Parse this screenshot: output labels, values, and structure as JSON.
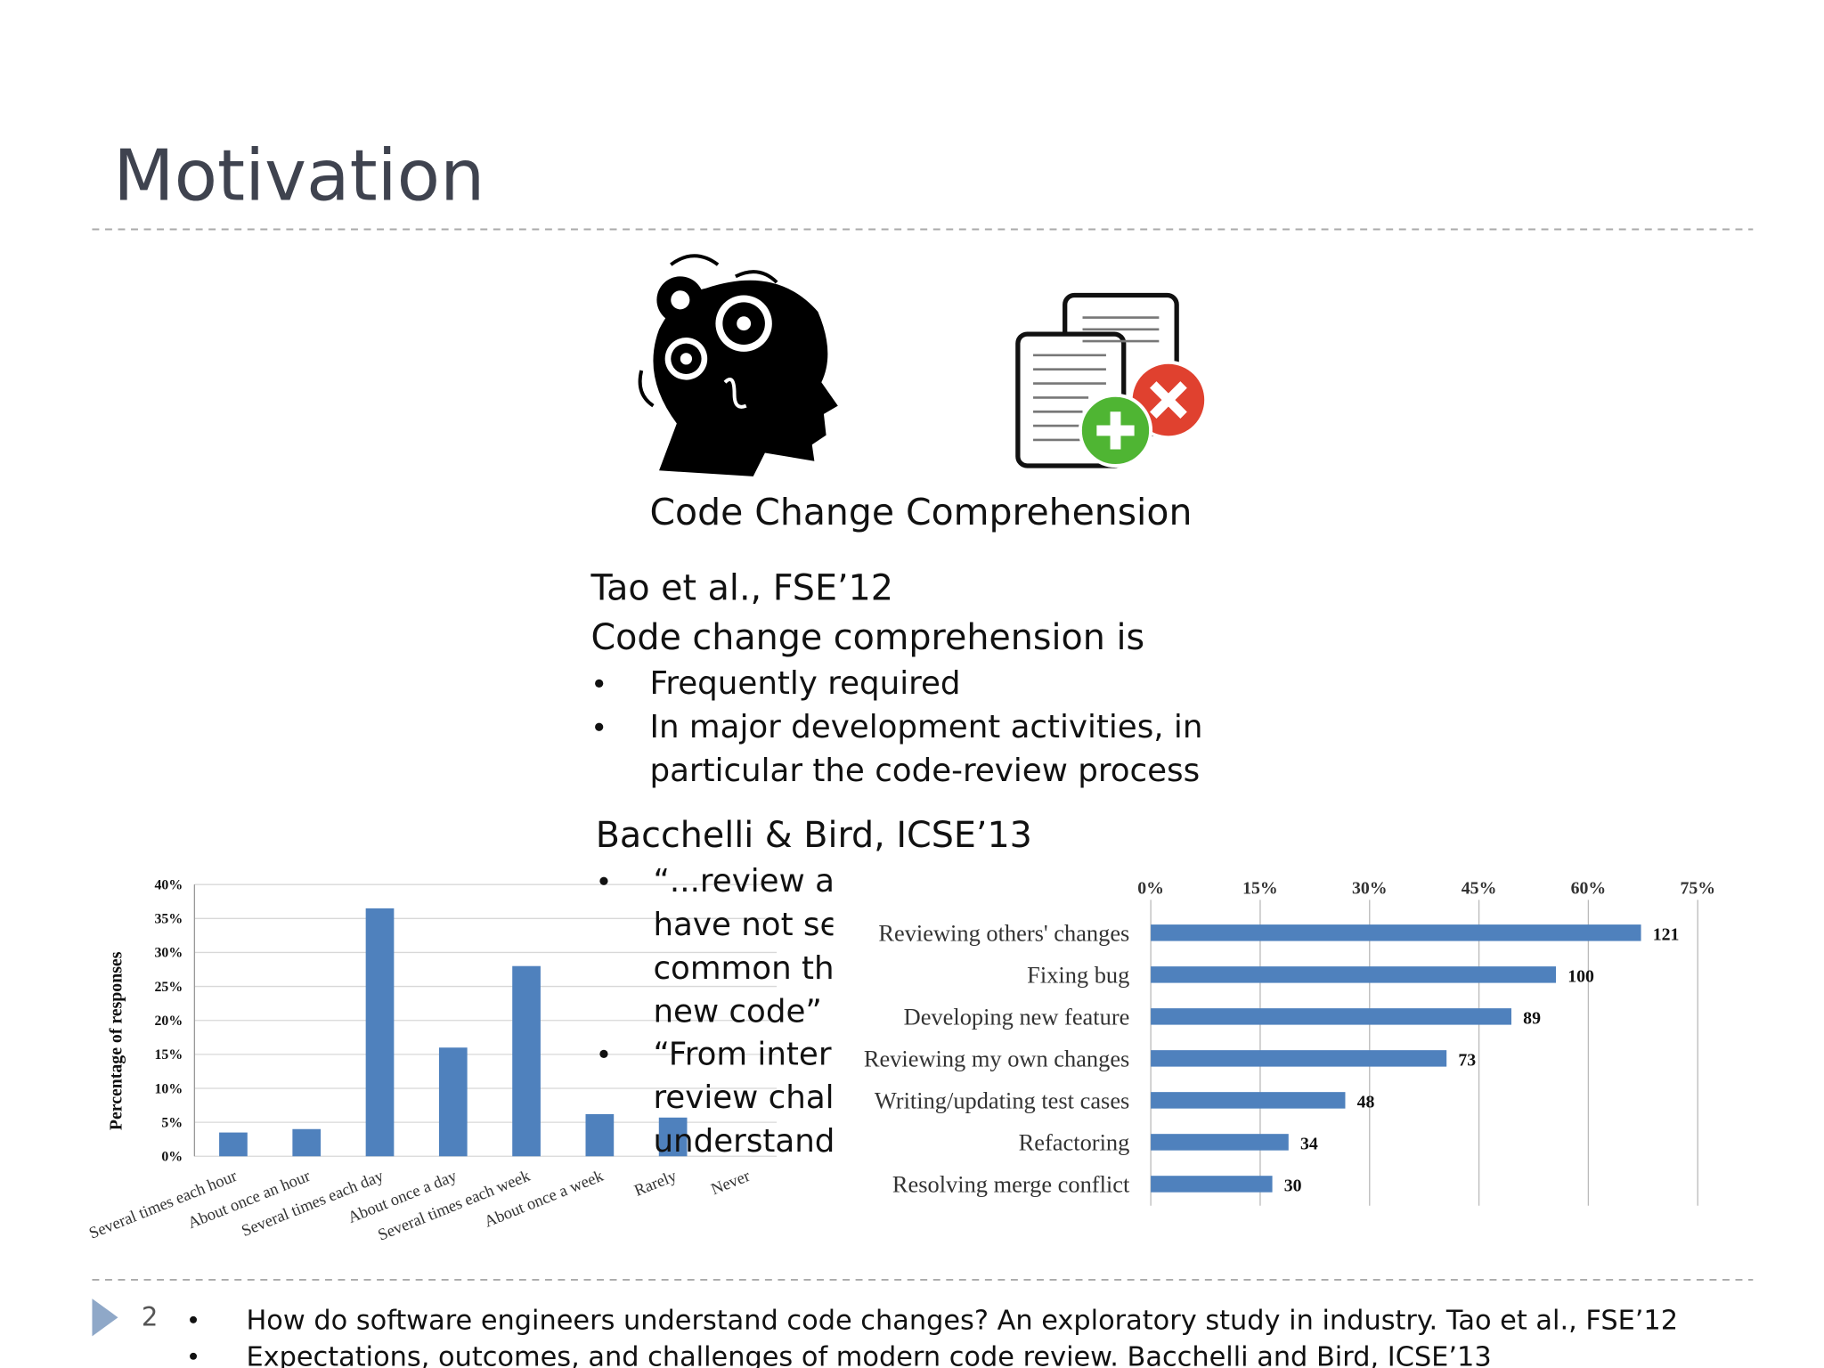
{
  "title": "Motivation",
  "caption": "Code Change Comprehension",
  "sections": [
    {
      "heading": "Tao et al., FSE’12",
      "lead": "Code change comprehension is",
      "bullets": [
        [
          "Frequently required"
        ],
        [
          "In major development activities, in",
          "particular the code-review process"
        ]
      ]
    },
    {
      "heading": "Bacchelli & Bird, ICSE’13",
      "bullets": [
        [
          "“...review a",
          "have not see",
          "common tha",
          "new code”"
        ],
        [
          "“From inter",
          "review chall",
          "understandi"
        ]
      ]
    }
  ],
  "chart_data": [
    {
      "type": "bar",
      "y_label": "Percentage of responses",
      "color": "#4f81bd",
      "categories": [
        "Several times each hour",
        "About once an hour",
        "Several times each day",
        "About once a day",
        "Several times each week",
        "About once a week",
        "Rarely",
        "Never"
      ],
      "values": [
        3.5,
        4,
        36.5,
        16,
        28,
        6.2,
        5.7,
        0
      ],
      "ylim": [
        0,
        40
      ],
      "yticks": [
        {
          "value": 0,
          "label": "0%"
        },
        {
          "value": 5,
          "label": "5%"
        },
        {
          "value": 10,
          "label": "10%"
        },
        {
          "value": 15,
          "label": "15%"
        },
        {
          "value": 20,
          "label": "20%"
        },
        {
          "value": 25,
          "label": "25%"
        },
        {
          "value": 30,
          "label": "30%"
        },
        {
          "value": 35,
          "label": "35%"
        },
        {
          "value": 40,
          "label": "40%"
        }
      ],
      "grid": true
    },
    {
      "type": "hbar",
      "color": "#4f81bd",
      "categories": [
        "Reviewing others' changes",
        "Fixing bug",
        "Developing new feature",
        "Reviewing my own changes",
        "Writing/updating test cases",
        "Refactoring",
        "Resolving merge conflict"
      ],
      "values": [
        121,
        100,
        89,
        73,
        48,
        34,
        30
      ],
      "xlim": [
        0,
        135
      ],
      "xticks": [
        {
          "value": 0,
          "label": "0%"
        },
        {
          "value": 27,
          "label": "15%"
        },
        {
          "value": 54,
          "label": "30%"
        },
        {
          "value": 81,
          "label": "45%"
        },
        {
          "value": 108,
          "label": "60%"
        },
        {
          "value": 135,
          "label": "75%"
        }
      ],
      "grid": true
    }
  ],
  "footer": {
    "page": "2",
    "references": [
      "How do software engineers understand code changes? An exploratory study in industry. Tao et al., FSE’12",
      "Expectations, outcomes, and challenges of modern code review. Bacchelli and Bird, ICSE’13"
    ]
  }
}
